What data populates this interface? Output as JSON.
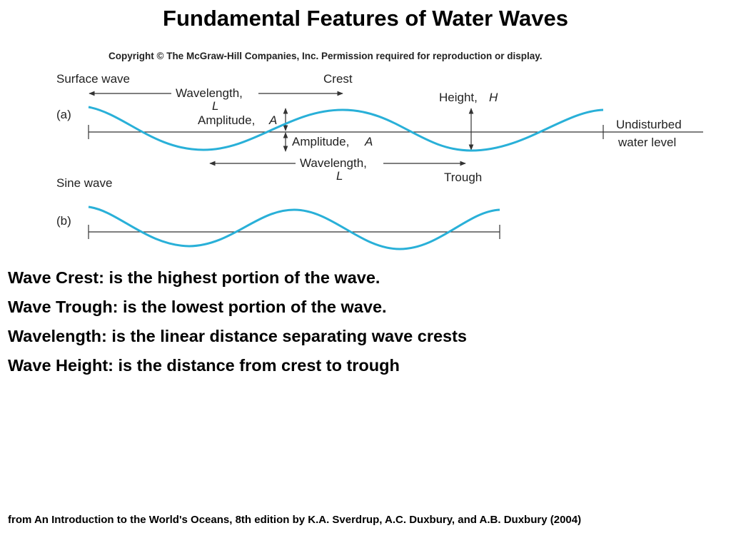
{
  "title": "Fundamental Features of Water Waves",
  "diagram": {
    "copyright": "Copyright © The McGraw-Hill Companies, Inc. Permission required for reproduction or display.",
    "panel_a": {
      "heading": "Surface wave",
      "tag": "(a)",
      "crest_label": "Crest",
      "top_wavelength_line1": "Wavelength,",
      "top_wavelength_line2": "L",
      "height_label": "Height,",
      "height_symbol": "H",
      "amplitude_upper": "Amplitude,",
      "amplitude_upper_symbol": "A",
      "amplitude_lower": "Amplitude,",
      "amplitude_lower_symbol": "A",
      "undisturbed_line1": "Undisturbed",
      "undisturbed_line2": "water level",
      "bottom_wavelength_line1": "Wavelength,",
      "bottom_wavelength_line2": "L",
      "trough_label": "Trough"
    },
    "panel_b": {
      "heading": "Sine wave",
      "tag": "(b)"
    },
    "wave_color": "#29b0d8"
  },
  "bullets": [
    "Wave Crest: is the highest portion of the wave.",
    "Wave Trough: is the lowest portion of the wave.",
    "Wavelength: is the linear distance separating wave crests",
    "Wave Height: is the distance from crest to trough"
  ],
  "footer": "from An Introduction to the World's Oceans, 8th edition by K.A. Sverdrup, A.C. Duxbury, and A.B. Duxbury (2004)"
}
